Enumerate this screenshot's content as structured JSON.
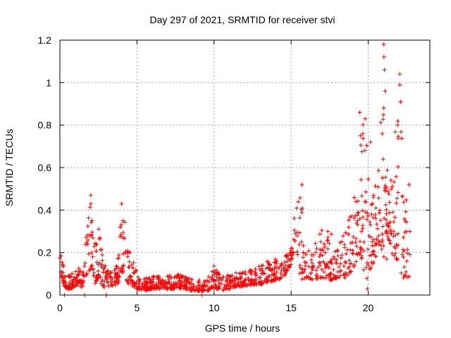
{
  "chart_data": {
    "type": "scatter",
    "title": "Day 297 of 2021, SRMTID for receiver stvi",
    "xlabel": "GPS time / hours",
    "ylabel": "SRMTID / TECUs",
    "xlim": [
      0,
      24
    ],
    "ylim": [
      0,
      1.2
    ],
    "x_ticks": [
      0,
      5,
      10,
      15,
      20
    ],
    "x_tick_labels": [
      "0",
      "5",
      "10",
      "15",
      "20"
    ],
    "y_ticks": [
      0,
      0.2,
      0.4,
      0.6,
      0.8,
      1,
      1.2
    ],
    "y_tick_labels": [
      "0",
      "0.2",
      "0.4",
      "0.6",
      "0.8",
      "1",
      "1.2"
    ],
    "grid": true,
    "marker": "plus",
    "color": "#ff0000",
    "envelope": [
      [
        0.0,
        0.12,
        0.26
      ],
      [
        0.25,
        0.04,
        0.12
      ],
      [
        0.5,
        0.03,
        0.09
      ],
      [
        0.75,
        0.03,
        0.1
      ],
      [
        1.0,
        0.04,
        0.11
      ],
      [
        1.25,
        0.04,
        0.13
      ],
      [
        1.5,
        0.04,
        0.11
      ],
      [
        1.75,
        0.1,
        0.33
      ],
      [
        2.0,
        0.12,
        0.47
      ],
      [
        2.25,
        0.05,
        0.26
      ],
      [
        2.5,
        0.08,
        0.35
      ],
      [
        2.75,
        0.04,
        0.21
      ],
      [
        3.0,
        0.03,
        0.12
      ],
      [
        3.25,
        0.05,
        0.11
      ],
      [
        3.5,
        0.04,
        0.12
      ],
      [
        3.75,
        0.05,
        0.15
      ],
      [
        4.0,
        0.1,
        0.43
      ],
      [
        4.25,
        0.08,
        0.38
      ],
      [
        4.5,
        0.04,
        0.21
      ],
      [
        4.75,
        0.04,
        0.19
      ],
      [
        5.0,
        0.03,
        0.1
      ],
      [
        5.5,
        0.02,
        0.08
      ],
      [
        6.0,
        0.03,
        0.09
      ],
      [
        6.5,
        0.03,
        0.09
      ],
      [
        7.0,
        0.03,
        0.1
      ],
      [
        7.5,
        0.03,
        0.1
      ],
      [
        8.0,
        0.03,
        0.09
      ],
      [
        8.5,
        0.02,
        0.08
      ],
      [
        9.0,
        0.02,
        0.07
      ],
      [
        9.5,
        0.02,
        0.07
      ],
      [
        10.0,
        0.03,
        0.14
      ],
      [
        10.5,
        0.02,
        0.09
      ],
      [
        11.0,
        0.03,
        0.1
      ],
      [
        11.5,
        0.04,
        0.11
      ],
      [
        12.0,
        0.04,
        0.11
      ],
      [
        12.5,
        0.05,
        0.12
      ],
      [
        13.0,
        0.05,
        0.14
      ],
      [
        13.5,
        0.06,
        0.17
      ],
      [
        14.0,
        0.07,
        0.17
      ],
      [
        14.5,
        0.08,
        0.17
      ],
      [
        15.0,
        0.14,
        0.24
      ],
      [
        15.3,
        0.26,
        0.46
      ],
      [
        15.6,
        0.06,
        0.52
      ],
      [
        16.0,
        0.08,
        0.21
      ],
      [
        16.5,
        0.07,
        0.25
      ],
      [
        17.0,
        0.08,
        0.32
      ],
      [
        17.5,
        0.07,
        0.31
      ],
      [
        18.0,
        0.08,
        0.25
      ],
      [
        18.5,
        0.08,
        0.3
      ],
      [
        19.0,
        0.12,
        0.42
      ],
      [
        19.5,
        0.2,
        0.76
      ],
      [
        19.8,
        0.03,
        0.86
      ],
      [
        20.0,
        0.1,
        0.71
      ],
      [
        20.25,
        0.14,
        0.51
      ],
      [
        20.5,
        0.18,
        0.56
      ],
      [
        20.75,
        0.25,
        0.75
      ],
      [
        21.0,
        0.17,
        1.18
      ],
      [
        21.25,
        0.28,
        0.66
      ],
      [
        21.5,
        0.2,
        0.58
      ],
      [
        21.75,
        0.18,
        0.79
      ],
      [
        22.0,
        0.12,
        1.04
      ],
      [
        22.25,
        0.08,
        0.62
      ],
      [
        22.5,
        0.08,
        0.53
      ],
      [
        22.75,
        0.09,
        0.44
      ]
    ],
    "highlights": [
      [
        2.0,
        0.47
      ],
      [
        4.0,
        0.43
      ],
      [
        15.7,
        0.52
      ],
      [
        19.45,
        0.86
      ],
      [
        19.8,
        0.83
      ],
      [
        21.0,
        1.18
      ],
      [
        21.05,
        1.06
      ],
      [
        21.1,
        0.96
      ],
      [
        22.05,
        1.04
      ],
      [
        22.05,
        0.99
      ],
      [
        22.1,
        0.91
      ],
      [
        21.9,
        0.8
      ],
      [
        20.15,
        0.72
      ],
      [
        21.0,
        0.88
      ],
      [
        21.2,
        0.17
      ],
      [
        22.65,
        0.52
      ],
      [
        22.5,
        0.16
      ],
      [
        0.3,
        0.0
      ],
      [
        1.6,
        0.0
      ],
      [
        3.0,
        0.0
      ],
      [
        9.2,
        0.0
      ],
      [
        19.95,
        0.03
      ],
      [
        20.35,
        0.47
      ],
      [
        22.7,
        0.3
      ]
    ],
    "n_points": 1300
  }
}
